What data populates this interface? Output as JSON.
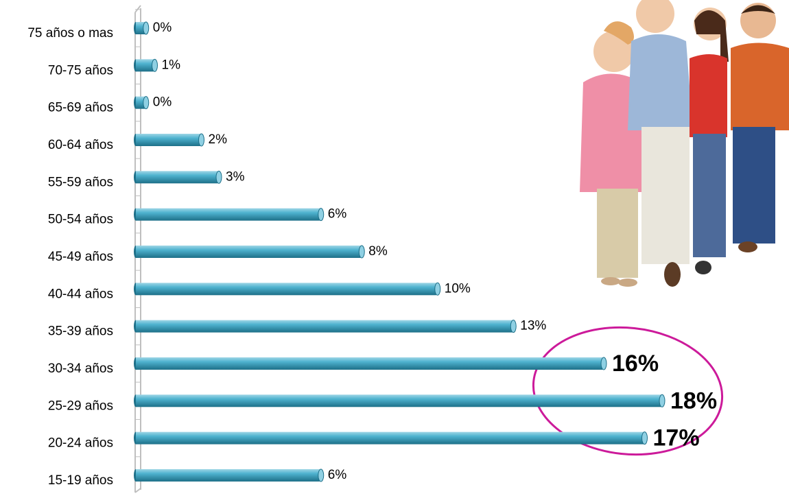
{
  "chart_data": {
    "type": "bar",
    "orientation": "horizontal",
    "categories": [
      "75 años o mas",
      "70-75 años",
      "65-69 años",
      "60-64 años",
      "55-59 años",
      "50-54 años",
      "45-49 años",
      "40-44 años",
      "35-39 años",
      "30-34 años",
      "25-29 años",
      "20-24 años",
      "15-19 años"
    ],
    "values": [
      0.3,
      0.6,
      0.3,
      2.2,
      2.8,
      6.3,
      7.7,
      10.3,
      12.9,
      16,
      18,
      17.4,
      6.3
    ],
    "value_labels": [
      "0%",
      "1%",
      "0%",
      "2%",
      "3%",
      "6%",
      "8%",
      "10%",
      "13%",
      "16%",
      "18%",
      "17%",
      "6%"
    ],
    "color": "#3fa3c0",
    "xlim": [
      0,
      22
    ]
  }
}
